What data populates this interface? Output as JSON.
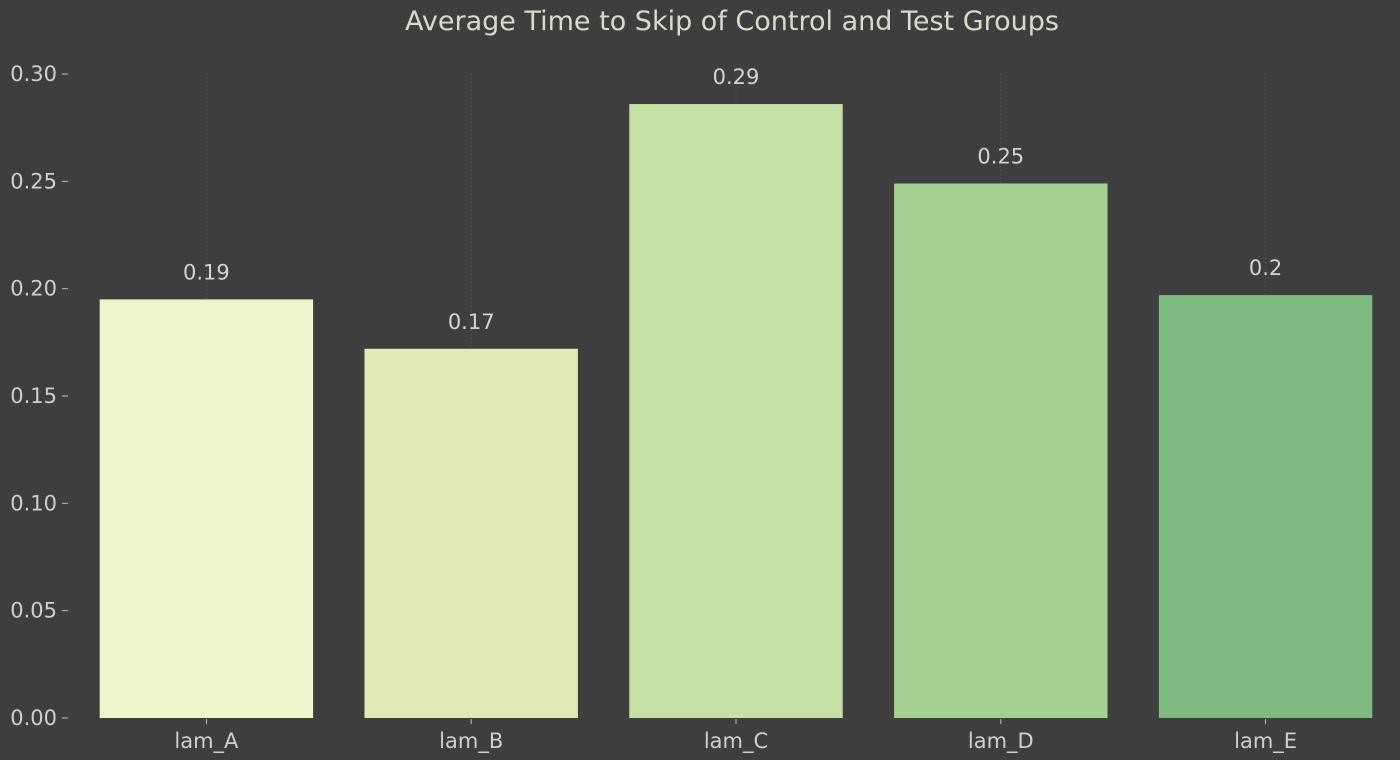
{
  "chart_data": {
    "type": "bar",
    "title": "Average Time to Skip of Control and Test Groups",
    "xlabel": "",
    "ylabel": "",
    "categories": [
      "lam_A",
      "lam_B",
      "lam_C",
      "lam_D",
      "lam_E"
    ],
    "values": [
      0.195,
      0.172,
      0.286,
      0.249,
      0.197
    ],
    "data_labels": [
      "0.19",
      "0.17",
      "0.29",
      "0.25",
      "0.2"
    ],
    "bar_colors": [
      "#eef5cb",
      "#dfeab5",
      "#c6e0a5",
      "#a6d092",
      "#7fbb80"
    ],
    "ylim": [
      0,
      0.3
    ],
    "yticks": [
      0.0,
      0.05,
      0.1,
      0.15,
      0.2,
      0.25,
      0.3
    ],
    "ytick_labels": [
      "0.00",
      "0.05",
      "0.10",
      "0.15",
      "0.20",
      "0.25",
      "0.30"
    ],
    "grid": "vertical-dotted",
    "background": "#3e3e3e"
  }
}
